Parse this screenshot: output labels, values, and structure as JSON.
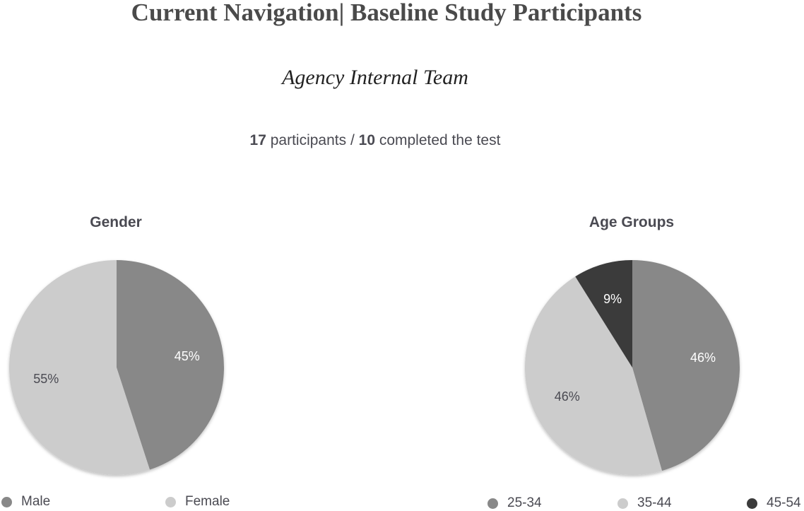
{
  "page": {
    "title": "Current Navigation| Baseline Study Participants",
    "subtitle": "Agency Internal Team",
    "participants_count": "17",
    "participants_text": " participants / ",
    "completed_count": "10",
    "completed_text": " completed the test"
  },
  "chart_data": [
    {
      "type": "pie",
      "title": "Gender",
      "categories": [
        "Male",
        "Female"
      ],
      "values": [
        45,
        55
      ],
      "labels": [
        "45%",
        "55%"
      ],
      "colors": [
        "#888888",
        "#cccccc"
      ],
      "label_colors": [
        "#ffffff",
        "#4a4a52"
      ],
      "legend": "bottom"
    },
    {
      "type": "pie",
      "title": "Age Groups",
      "categories": [
        "25-34",
        "35-44",
        "45-54"
      ],
      "values": [
        46,
        46,
        9
      ],
      "labels": [
        "46%",
        "46%",
        "9%"
      ],
      "colors": [
        "#888888",
        "#cccccc",
        "#3b3b3b"
      ],
      "label_colors": [
        "#ffffff",
        "#4a4a52",
        "#ffffff"
      ],
      "legend": "bottom"
    }
  ]
}
